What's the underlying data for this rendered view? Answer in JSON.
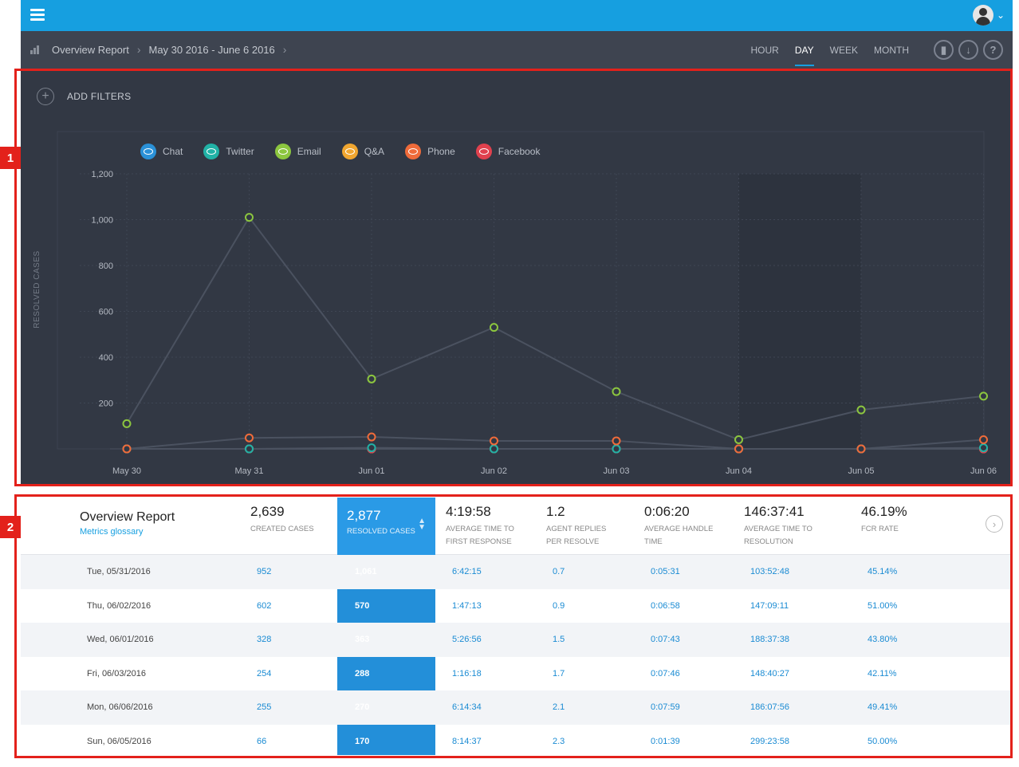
{
  "topbar": {
    "menu_icon": "hamburger-icon",
    "avatar_icon": "user-avatar",
    "chevron_icon": "chevron-down-icon"
  },
  "breadcrumb": {
    "report": "Overview Report",
    "date_range": "May 30 2016 - June 6 2016"
  },
  "period_tabs": [
    {
      "label": "HOUR",
      "active": false
    },
    {
      "label": "DAY",
      "active": true
    },
    {
      "label": "WEEK",
      "active": false
    },
    {
      "label": "MONTH",
      "active": false
    }
  ],
  "toolbar_icons": [
    "bookmark-icon",
    "download-icon",
    "help-icon"
  ],
  "filters": {
    "add_label": "ADD FILTERS"
  },
  "callouts": [
    "1",
    "2"
  ],
  "chart_data": {
    "type": "line",
    "ylabel": "RESOLVED CASES",
    "ylim": [
      0,
      1200
    ],
    "yticks": [
      200,
      400,
      600,
      800,
      "1,000",
      "1,200"
    ],
    "ytick_values": [
      200,
      400,
      600,
      800,
      1000,
      1200
    ],
    "categories": [
      "May 30",
      "May 31",
      "Jun 01",
      "Jun 02",
      "Jun 03",
      "Jun 04",
      "Jun 05",
      "Jun 06"
    ],
    "grid": true,
    "legend_position": "top-left",
    "series": [
      {
        "name": "Chat",
        "color": "#2a91d8",
        "values": [
          0,
          0,
          0,
          0,
          0,
          0,
          0,
          0
        ]
      },
      {
        "name": "Twitter",
        "color": "#21b2a6",
        "values": [
          0,
          0,
          5,
          0,
          0,
          0,
          0,
          5
        ]
      },
      {
        "name": "Email",
        "color": "#8cc63f",
        "values": [
          110,
          1010,
          305,
          530,
          250,
          40,
          170,
          230
        ]
      },
      {
        "name": "Q&A",
        "color": "#f0a630",
        "values": [
          0,
          0,
          0,
          0,
          0,
          0,
          0,
          0
        ]
      },
      {
        "name": "Phone",
        "color": "#ef6b3a",
        "values": [
          0,
          48,
          52,
          35,
          35,
          0,
          0,
          40
        ]
      },
      {
        "name": "Facebook",
        "color": "#e0414e",
        "values": [
          0,
          0,
          0,
          0,
          0,
          0,
          0,
          0
        ]
      }
    ]
  },
  "summary": {
    "title": "Overview Report",
    "glossary": "Metrics glossary",
    "created": {
      "value": "2,639",
      "label": "CREATED CASES"
    },
    "resolved": {
      "value": "2,877",
      "label": "RESOLVED CASES"
    },
    "first_response": {
      "value": "4:19:58",
      "label_1": "AVERAGE TIME TO",
      "label_2": "FIRST RESPONSE"
    },
    "replies": {
      "value": "1.2",
      "label_1": "AGENT REPLIES",
      "label_2": "PER RESOLVE"
    },
    "handle": {
      "value": "0:06:20",
      "label_1": "AVERAGE HANDLE",
      "label_2": "TIME"
    },
    "resolution": {
      "value": "146:37:41",
      "label_1": "AVERAGE TIME TO",
      "label_2": "RESOLUTION"
    },
    "fcr": {
      "value": "46.19%",
      "label": "FCR RATE"
    }
  },
  "rows": [
    {
      "date": "Tue, 05/31/2016",
      "created": "952",
      "resolved": "1,061",
      "first_response": "6:42:15",
      "replies": "0.7",
      "handle": "0:05:31",
      "resolution": "103:52:48",
      "fcr": "45.14%"
    },
    {
      "date": "Thu, 06/02/2016",
      "created": "602",
      "resolved": "570",
      "first_response": "1:47:13",
      "replies": "0.9",
      "handle": "0:06:58",
      "resolution": "147:09:11",
      "fcr": "51.00%"
    },
    {
      "date": "Wed, 06/01/2016",
      "created": "328",
      "resolved": "363",
      "first_response": "5:26:56",
      "replies": "1.5",
      "handle": "0:07:43",
      "resolution": "188:37:38",
      "fcr": "43.80%"
    },
    {
      "date": "Fri, 06/03/2016",
      "created": "254",
      "resolved": "288",
      "first_response": "1:16:18",
      "replies": "1.7",
      "handle": "0:07:46",
      "resolution": "148:40:27",
      "fcr": "42.11%"
    },
    {
      "date": "Mon, 06/06/2016",
      "created": "255",
      "resolved": "270",
      "first_response": "6:14:34",
      "replies": "2.1",
      "handle": "0:07:59",
      "resolution": "186:07:56",
      "fcr": "49.41%"
    },
    {
      "date": "Sun, 06/05/2016",
      "created": "66",
      "resolved": "170",
      "first_response": "8:14:37",
      "replies": "2.3",
      "handle": "0:01:39",
      "resolution": "299:23:58",
      "fcr": "50.00%"
    }
  ]
}
